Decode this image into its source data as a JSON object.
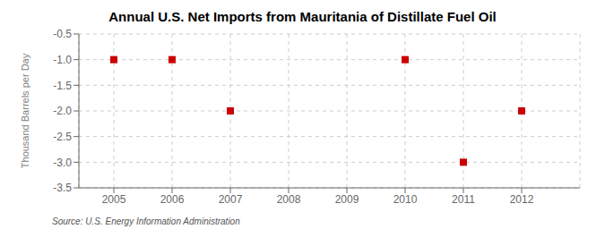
{
  "chart_data": {
    "type": "scatter",
    "title": "Annual U.S. Net Imports from Mauritania of Distillate Fuel Oil",
    "ylabel": "Thousand Barrels per Day",
    "annotations": [
      "Source: U.S. Energy Information Administration"
    ],
    "x": [
      2005,
      2006,
      2007,
      2010,
      2011,
      2012
    ],
    "values": [
      -1,
      -1,
      -2,
      -1,
      -3,
      -2
    ],
    "xlim": [
      2004.4,
      2013.0
    ],
    "ylim": [
      -3.5,
      -0.5
    ],
    "xticks": [
      2005,
      2006,
      2007,
      2008,
      2009,
      2010,
      2011,
      2012
    ],
    "yticks": [
      -0.5,
      {
        "value": -1.0,
        "label": "-1.0"
      },
      -1.5,
      {
        "value": -2.0,
        "label": "-2.0"
      },
      -2.5,
      {
        "value": -3.0,
        "label": "-3.0"
      },
      -3.5
    ],
    "color": "#cc0000",
    "marker": "square",
    "grid": true
  }
}
